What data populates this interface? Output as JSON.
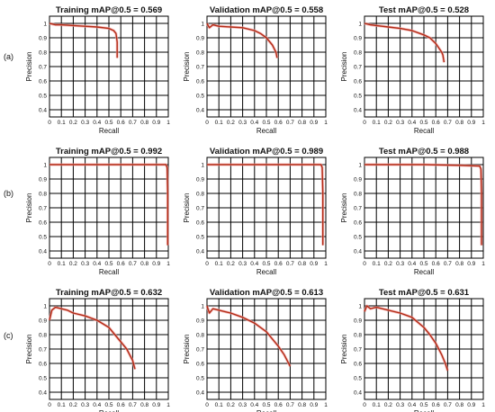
{
  "row_labels": [
    "(a)",
    "(b)",
    "(c)"
  ],
  "colors": {
    "curve": "#b22b15",
    "artifact_cyan": "#7fd4f0",
    "artifact_pink": "#f2a3a3",
    "grid": "#000000"
  },
  "chart_data": [
    {
      "type": "line",
      "title": "Training mAP@0.5 = 0.569",
      "xlabel": "Recall",
      "ylabel": "Precision",
      "xlim": [
        0,
        1
      ],
      "ylim": [
        0.35,
        1.05
      ],
      "grid": true,
      "x": [
        0,
        0.05,
        0.1,
        0.2,
        0.3,
        0.4,
        0.5,
        0.54,
        0.56,
        0.57,
        0.57
      ],
      "y": [
        1.0,
        0.99,
        0.99,
        0.985,
        0.98,
        0.975,
        0.965,
        0.95,
        0.93,
        0.87,
        0.76
      ]
    },
    {
      "type": "line",
      "title": "Validation mAP@0.5 = 0.558",
      "xlabel": "Recall",
      "ylabel": "Precision",
      "xlim": [
        0,
        1
      ],
      "ylim": [
        0.35,
        1.05
      ],
      "grid": true,
      "x": [
        0,
        0.02,
        0.05,
        0.1,
        0.2,
        0.3,
        0.4,
        0.45,
        0.5,
        0.55,
        0.58,
        0.59
      ],
      "y": [
        1.0,
        0.97,
        0.99,
        0.98,
        0.975,
        0.97,
        0.95,
        0.93,
        0.9,
        0.85,
        0.8,
        0.76
      ]
    },
    {
      "type": "line",
      "title": "Test mAP@0.5 = 0.528",
      "xlabel": "Recall",
      "ylabel": "Precision",
      "xlim": [
        0,
        1
      ],
      "ylim": [
        0.35,
        1.05
      ],
      "grid": true,
      "x": [
        0,
        0.05,
        0.1,
        0.2,
        0.3,
        0.4,
        0.5,
        0.55,
        0.6,
        0.65,
        0.66,
        0.67
      ],
      "y": [
        1.0,
        0.99,
        0.985,
        0.975,
        0.965,
        0.95,
        0.92,
        0.9,
        0.86,
        0.8,
        0.78,
        0.73
      ]
    },
    {
      "type": "line",
      "title": "Training mAP@0.5 = 0.992",
      "xlabel": "Recall",
      "ylabel": "Precision",
      "xlim": [
        0,
        1
      ],
      "ylim": [
        0.35,
        1.05
      ],
      "grid": true,
      "x": [
        0,
        0.2,
        0.5,
        0.8,
        0.98,
        0.99,
        0.995,
        0.995
      ],
      "y": [
        1.0,
        1.0,
        1.0,
        1.0,
        1.0,
        0.98,
        0.8,
        0.44
      ]
    },
    {
      "type": "line",
      "title": "Validation mAP@0.5 = 0.989",
      "xlabel": "Recall",
      "ylabel": "Precision",
      "xlim": [
        0,
        1
      ],
      "ylim": [
        0.35,
        1.05
      ],
      "grid": true,
      "x": [
        0,
        0.2,
        0.5,
        0.8,
        0.96,
        0.97,
        0.975,
        0.975
      ],
      "y": [
        1.0,
        1.0,
        1.0,
        1.0,
        1.0,
        0.98,
        0.8,
        0.44
      ]
    },
    {
      "type": "line",
      "title": "Test mAP@0.5 = 0.988",
      "xlabel": "Recall",
      "ylabel": "Precision",
      "xlim": [
        0,
        1
      ],
      "ylim": [
        0.35,
        1.05
      ],
      "grid": true,
      "x": [
        0,
        0.2,
        0.5,
        0.8,
        0.97,
        0.98,
        0.985,
        0.985
      ],
      "y": [
        1.0,
        1.0,
        1.0,
        0.995,
        0.99,
        0.97,
        0.8,
        0.44
      ]
    },
    {
      "type": "line",
      "title": "Training mAP@0.5 = 0.632",
      "xlabel": "Recall",
      "ylabel": "Precision",
      "xlim": [
        0,
        1
      ],
      "ylim": [
        0.35,
        1.05
      ],
      "grid": true,
      "x": [
        0.0,
        0.02,
        0.05,
        0.1,
        0.15,
        0.2,
        0.3,
        0.4,
        0.5,
        0.55,
        0.6,
        0.65,
        0.7,
        0.72
      ],
      "y": [
        0.9,
        0.97,
        0.99,
        0.98,
        0.97,
        0.95,
        0.93,
        0.9,
        0.85,
        0.8,
        0.75,
        0.7,
        0.62,
        0.56
      ]
    },
    {
      "type": "line",
      "title": "Validation mAP@0.5 = 0.613",
      "xlabel": "Recall",
      "ylabel": "Precision",
      "xlim": [
        0,
        1
      ],
      "ylim": [
        0.35,
        1.05
      ],
      "grid": true,
      "x": [
        0.0,
        0.02,
        0.05,
        0.1,
        0.15,
        0.2,
        0.3,
        0.4,
        0.5,
        0.55,
        0.6,
        0.65,
        0.7
      ],
      "y": [
        1.0,
        0.95,
        0.98,
        0.97,
        0.96,
        0.95,
        0.92,
        0.88,
        0.82,
        0.77,
        0.72,
        0.66,
        0.58
      ]
    },
    {
      "type": "line",
      "title": "Test mAP@0.5 = 0.631",
      "xlabel": "Recall",
      "ylabel": "Precision",
      "xlim": [
        0,
        1
      ],
      "ylim": [
        0.35,
        1.05
      ],
      "grid": true,
      "x": [
        0.0,
        0.02,
        0.05,
        0.1,
        0.2,
        0.3,
        0.4,
        0.5,
        0.55,
        0.6,
        0.65,
        0.68,
        0.7
      ],
      "y": [
        0.96,
        1.0,
        0.98,
        0.99,
        0.97,
        0.95,
        0.92,
        0.85,
        0.8,
        0.74,
        0.66,
        0.6,
        0.55
      ]
    }
  ]
}
